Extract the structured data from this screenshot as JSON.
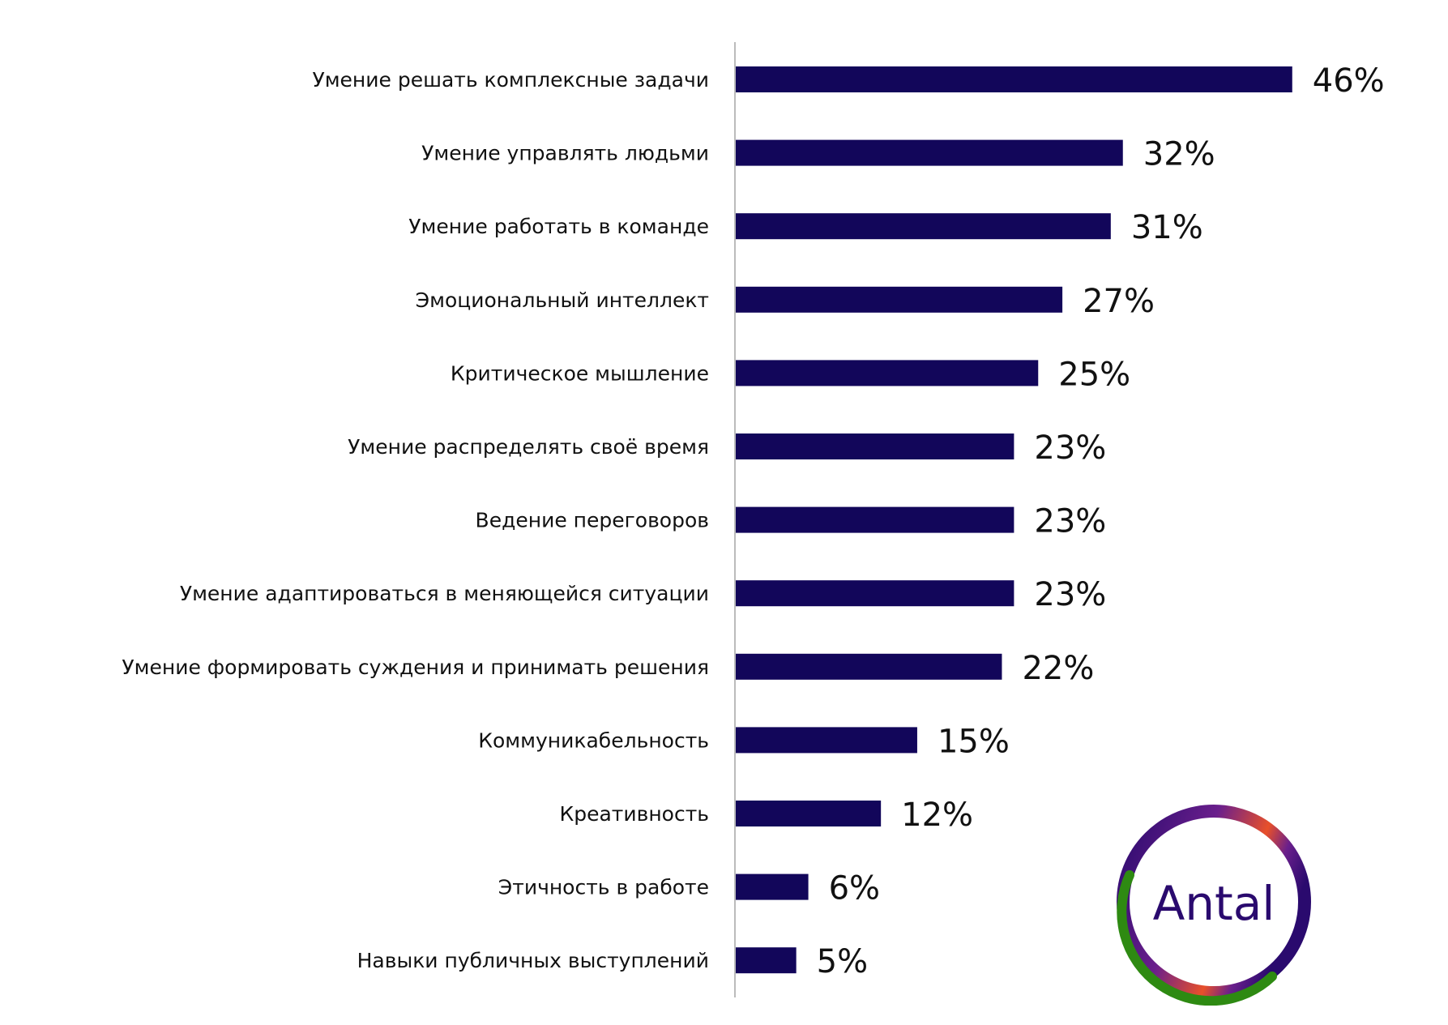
{
  "chart_data": {
    "type": "bar",
    "orientation": "horizontal",
    "categories": [
      "Умение решать комплексные задачи",
      "Умение управлять людьми",
      "Умение работать в команде",
      "Эмоциональный интеллект",
      "Критическое мышление",
      "Умение распределять своё время",
      "Ведение переговоров",
      "Умение адаптироваться в меняющейся ситуации",
      "Умение формировать суждения и принимать решения",
      "Коммуникабельность",
      "Креативность",
      "Этичность в работе",
      "Навыки публичных выступлений"
    ],
    "values": [
      46,
      32,
      31,
      27,
      25,
      23,
      23,
      23,
      22,
      15,
      12,
      6,
      5
    ],
    "data_labels": [
      "46%",
      "32%",
      "31%",
      "27%",
      "25%",
      "23%",
      "23%",
      "23%",
      "22%",
      "15%",
      "12%",
      "6%",
      "5%"
    ],
    "title": "",
    "xlabel": "",
    "ylabel": "",
    "xlim": [
      0,
      50
    ],
    "grid": false,
    "legend": "none",
    "bar_color": "#12065a",
    "axis_color": "#bbbbbb"
  },
  "logo": {
    "text": "Antal",
    "colors": {
      "ring": "#2a0a6e",
      "purple": "#6a1f8c",
      "orange": "#e8502a",
      "green": "#2e8a12",
      "text": "#2a0a6e"
    }
  }
}
